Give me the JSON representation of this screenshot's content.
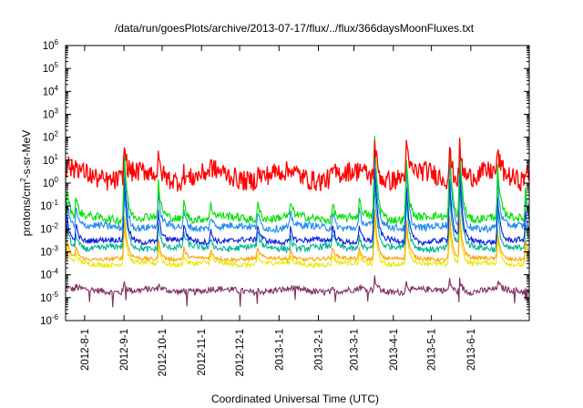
{
  "chart_data": {
    "type": "line",
    "title": "/data/run/goesPlots/archive/2013-07-17/flux/../flux/366daysMoonFluxes.txt",
    "xlabel": "Coordinated Universal Time (UTC)",
    "ylabel": {
      "base": "protons/cm",
      "sup": "2",
      "rest": "-s-sr-MeV"
    },
    "y_scale": "log",
    "ylim": [
      1e-06,
      1000000.0
    ],
    "y_ticks": [
      {
        "base": "10",
        "exp": "-6",
        "value": 1e-06
      },
      {
        "base": "10",
        "exp": "-5",
        "value": 1e-05
      },
      {
        "base": "10",
        "exp": "-4",
        "value": 0.0001
      },
      {
        "base": "10",
        "exp": "-3",
        "value": 0.001
      },
      {
        "base": "10",
        "exp": "-2",
        "value": 0.01
      },
      {
        "base": "10",
        "exp": "-1",
        "value": 0.1
      },
      {
        "base": "10",
        "exp": "0",
        "value": 1
      },
      {
        "base": "10",
        "exp": "1",
        "value": 10.0
      },
      {
        "base": "10",
        "exp": "2",
        "value": 100.0
      },
      {
        "base": "10",
        "exp": "3",
        "value": 1000.0
      },
      {
        "base": "10",
        "exp": "4",
        "value": 10000.0
      },
      {
        "base": "10",
        "exp": "5",
        "value": 100000.0
      },
      {
        "base": "10",
        "exp": "6",
        "value": 1000000.0
      }
    ],
    "xlim": [
      "2012-07-17",
      "2013-07-17"
    ],
    "x_ticks": [
      {
        "label": "2012-8-1",
        "date": "2012-08-01"
      },
      {
        "label": "2012-9-1",
        "date": "2012-09-01"
      },
      {
        "label": "2012-10-1",
        "date": "2012-10-01"
      },
      {
        "label": "2012-11-1",
        "date": "2012-11-01"
      },
      {
        "label": "2012-12-1",
        "date": "2012-12-01"
      },
      {
        "label": "2013-1-1",
        "date": "2013-01-01"
      },
      {
        "label": "2013-2-1",
        "date": "2013-02-01"
      },
      {
        "label": "2013-3-1",
        "date": "2013-03-01"
      },
      {
        "label": "2013-4-1",
        "date": "2013-04-01"
      },
      {
        "label": "2013-5-1",
        "date": "2013-05-01"
      },
      {
        "label": "2013-6-1",
        "date": "2013-06-01"
      }
    ],
    "grid": false,
    "legend": "none",
    "events": [
      {
        "date": "2012-07-18",
        "height": 0.9
      },
      {
        "date": "2012-07-25",
        "height": 0.6
      },
      {
        "date": "2012-09-01",
        "height": 2.2
      },
      {
        "date": "2012-09-28",
        "height": 0.9
      },
      {
        "date": "2012-10-18",
        "height": 0.5
      },
      {
        "date": "2012-11-08",
        "height": 0.4
      },
      {
        "date": "2012-12-15",
        "height": 0.5
      },
      {
        "date": "2013-01-10",
        "height": 0.4
      },
      {
        "date": "2013-02-12",
        "height": 0.5
      },
      {
        "date": "2013-03-05",
        "height": 0.5
      },
      {
        "date": "2013-03-17",
        "height": 2.6
      },
      {
        "date": "2013-04-11",
        "height": 1.9
      },
      {
        "date": "2013-05-15",
        "height": 2.2
      },
      {
        "date": "2013-05-23",
        "height": 2.4
      },
      {
        "date": "2013-06-22",
        "height": 1.4
      },
      {
        "date": "2013-07-14",
        "height": 0.9
      }
    ],
    "series": [
      {
        "color": "#7f3060",
        "values": {
          "base": 2e-05,
          "noise": 0.14,
          "event_scale": 0.15
        }
      },
      {
        "color": "#e8e800",
        "values": {
          "base": 0.0003,
          "noise": 0.1,
          "event_scale": 0.55
        }
      },
      {
        "color": "#ffa000",
        "values": {
          "base": 0.0005,
          "noise": 0.08,
          "event_scale": 0.6
        }
      },
      {
        "color": "#00b494",
        "values": {
          "base": 0.0015,
          "noise": 0.14,
          "event_scale": 0.8
        }
      },
      {
        "color": "#0a1ee6",
        "values": {
          "base": 0.003,
          "noise": 0.12,
          "event_scale": 0.9
        }
      },
      {
        "color": "#1e8cf0",
        "values": {
          "base": 0.012,
          "noise": 0.16,
          "event_scale": 0.95
        }
      },
      {
        "color": "#00e000",
        "values": {
          "base": 0.03,
          "noise": 0.18,
          "event_scale": 1.0
        }
      },
      {
        "color": "#ff0000",
        "values": {
          "base": 2,
          "noise": 0.45,
          "event_scale": 0.7
        }
      }
    ]
  }
}
